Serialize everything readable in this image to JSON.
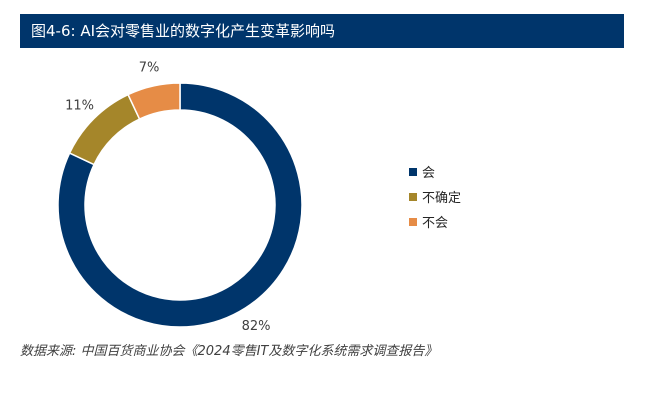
{
  "chart_data": {
    "type": "pie",
    "title": "图4-6: AI会对零售业的数字化产生变革影响吗",
    "categories": [
      "会",
      "不确定",
      "不会"
    ],
    "values": [
      82,
      11,
      7
    ],
    "value_labels": [
      "82%",
      "11%",
      "7%"
    ],
    "colors": [
      "#00356b",
      "#a5862a",
      "#e68c46"
    ],
    "legend_position": "right"
  },
  "source": "数据来源: 中国百货商业协会《2024零售IT及数字化系统需求调查报告》"
}
